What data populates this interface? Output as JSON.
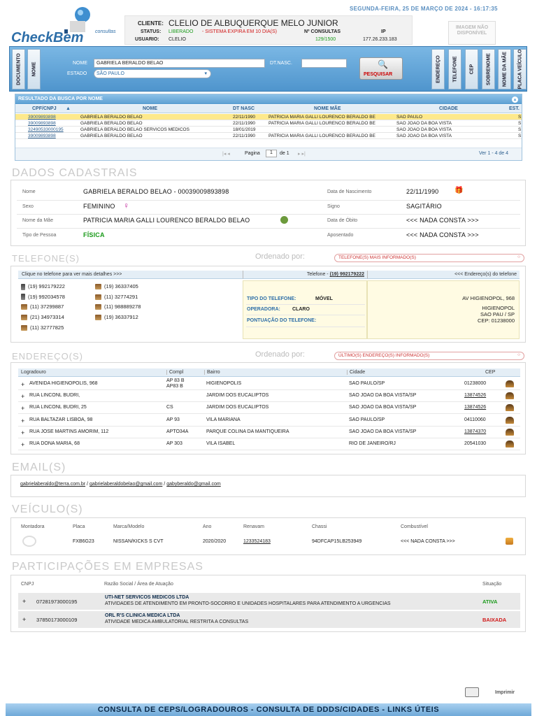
{
  "header": {
    "date": "SEGUNDA-FEIRA, 25 DE MARÇO DE 2024 - 16:17:35",
    "logo_text": "CheckBem",
    "logo_sub": "consultas",
    "cliente_label": "CLIENTE:",
    "cliente_value": "CLELIO DE ALBUQUERQUE MELO JUNIOR",
    "status_label": "STATUS:",
    "status_value": "LIBERADO",
    "status_expire": "- SISTEMA EXPIRA EM 10 DIA(S)",
    "usuario_label": "USUARIO:",
    "usuario_value": "CLELIO",
    "consultas_label": "Nº CONSULTAS",
    "consultas_value": "129/1500",
    "ip_label": "IP",
    "ip_value": "177.26.233.183",
    "image_placeholder": "IMAGEM NÃO DISPONÍVEL"
  },
  "search": {
    "left_tabs": [
      "DOCUMENTO",
      "NOME"
    ],
    "right_tabs": [
      "ENDEREÇO",
      "TELEFONE",
      "CEP",
      "SOBRENOME",
      "NOME DA MÃE",
      "PLACA VEÍCULO"
    ],
    "nome_label": "NOME",
    "nome_value": "GABRIELA BERALDO BELAO",
    "dtnasc_label": "DT.NASC.",
    "dtnasc_value": "",
    "estado_label": "ESTADO",
    "estado_value": "SÃO PAULO",
    "button": "PESQUISAR"
  },
  "results": {
    "title": "RESULTADO DA BUSCA POR NOME",
    "columns": [
      "CPF/CNPJ",
      "NOME",
      "DT NASC",
      "NOME MÃE",
      "CIDADE",
      "EST."
    ],
    "rows": [
      {
        "cpf": "39009893898",
        "nome": "GABRIELA BERALDO BELAO",
        "dt": "22/11/1990",
        "mae": "PATRICIA MARIA GALLI LOURENCO BERALDO BE",
        "cidade": "SAO PAULO",
        "est": "S"
      },
      {
        "cpf": "39009893898",
        "nome": "GABRIELA BERALDO BELAO",
        "dt": "22/11/1990",
        "mae": "PATRICIA MARIA GALLI LOURENCO BERALDO BE",
        "cidade": "SAO JOAO DA BOA VISTA",
        "est": "S"
      },
      {
        "cpf": "32490533000195",
        "nome": "GABRIELA BERALDO BELAO SERVICOS MEDICOS",
        "dt": "18/01/2019",
        "mae": "",
        "cidade": "SAO JOAO DA BOA VISTA",
        "est": "S"
      },
      {
        "cpf": "39009893898",
        "nome": "GABRIELA BERALDO BELAO",
        "dt": "22/11/1990",
        "mae": "PATRICIA MARIA GALLI LOURENCO BERALDO BE",
        "cidade": "SAO JOAO DA BOA VISTA",
        "est": "S"
      }
    ],
    "pagina_label": "Pagina",
    "pagina_value": "1",
    "de_label": "de 1",
    "ver_label": "Ver 1 - 4 de 4"
  },
  "dados": {
    "title": "DADOS CADASTRAIS",
    "nome_label": "Nome",
    "nome_value": "GABRIELA BERALDO BELAO - 00039009893898",
    "nasc_label": "Data de Nascimento",
    "nasc_value": "22/11/1990",
    "sexo_label": "Sexo",
    "sexo_value": "FEMININO",
    "signo_label": "Signo",
    "signo_value": "SAGITÁRIO",
    "mae_label": "Nome da Mãe",
    "mae_value": "PATRICIA MARIA GALLI LOURENCO BERALDO BELAO",
    "obito_label": "Data de Óbito",
    "obito_value": "<<< NADA CONSTA >>>",
    "tipo_label": "Tipo de Pessoa",
    "tipo_value": "FÍSICA",
    "apos_label": "Aposentado",
    "apos_value": "<<< NADA CONSTA >>>"
  },
  "telefones": {
    "title": "TELEFONE(S)",
    "ordenado_label": "Ordenado por:",
    "ordenado_value": "TELEFONE(S) MAIS INFORMADO(S)",
    "col1": "Clique no telefone para ver mais detalhes >>>",
    "col2_prefix": "Telefone - ",
    "col2_value": "(19) 992179222",
    "col3": "<<< Endereço(s) do telefone",
    "list_left": [
      "(19) 992179222",
      "(19) 992034578",
      "(11) 37299887",
      "(21) 34973314",
      "(11) 32777825"
    ],
    "list_right": [
      "(19) 36337405",
      "(11) 32774291",
      "(11) 988889278",
      "(19) 36337912"
    ],
    "tipo_label": "TIPO DO TELEFONE:",
    "tipo_value": "MÓVEL",
    "operadora_label": "OPERADORA:",
    "operadora_value": "CLARO",
    "pontuacao_label": "PONTUAÇÃO DO TELEFONE:",
    "pontuacao_value": "",
    "addr_line1": "AV HIGIENOPOL, 968",
    "addr_line2": "HIGIENOPOL",
    "addr_line3": "SAO PAU / SP",
    "addr_line4": "CEP: 01238000"
  },
  "enderecos": {
    "title": "ENDEREÇO(S)",
    "ordenado_label": "Ordenado por:",
    "ordenado_value": "ÚLTIMO(S) ENDEREÇO(S) INFORMADO(S)",
    "columns": [
      "Logradouro",
      "Compl",
      "Bairro",
      "Cidade",
      "CEP"
    ],
    "rows": [
      {
        "log": "AVENIDA HIGIENOPOLIS, 968",
        "compl": "AP 83 B",
        "compl2": "AP83 B",
        "bairro": "HIGIENOPOLIS",
        "cidade": "SAO PAULO/SP",
        "cep": "01238000",
        "cep_link": false
      },
      {
        "log": "RUA LINCONL BUDRI,",
        "compl": "",
        "compl2": "",
        "bairro": "JARDIM DOS EUCALIPTOS",
        "cidade": "SAO JOAO DA BOA VISTA/SP",
        "cep": "13874526",
        "cep_link": true
      },
      {
        "log": "RUA LINCONL BUDRI, 25",
        "compl": "CS",
        "compl2": "",
        "bairro": "JARDIM DOS EUCALIPTOS",
        "cidade": "SAO JOAO DA BOA VISTA/SP",
        "cep": "13874526",
        "cep_link": true
      },
      {
        "log": "RUA BALTAZAR LISBOA, 98",
        "compl": "AP 93",
        "compl2": "",
        "bairro": "VILA MARIANA",
        "cidade": "SAO PAULO/SP",
        "cep": "04110060",
        "cep_link": false
      },
      {
        "log": "RUA JOSE MARTINS AMORIM, 112",
        "compl": "APTO34A",
        "compl2": "",
        "bairro": "PARQUE COLINA DA MANTIQUEIRA",
        "cidade": "SAO JOAO DA BOA VISTA/SP",
        "cep": "13874370",
        "cep_link": true
      },
      {
        "log": "RUA DONA MARIA, 68",
        "compl": "AP 303",
        "compl2": "",
        "bairro": "VILA ISABEL",
        "cidade": "RIO DE JANEIRO/RJ",
        "cep": "20541030",
        "cep_link": false
      }
    ]
  },
  "emails": {
    "title": "EMAIL(S)",
    "list": [
      "gabrielaberaldo@terra.com.br",
      "gabrielaberaldobelao@gmail.com",
      "gabyberaldo@gmail.com"
    ]
  },
  "veiculos": {
    "title": "VEÍCULO(S)",
    "columns": [
      "Montadora",
      "Placa",
      "Marca/Modelo",
      "Ano",
      "Renavam",
      "Chassi",
      "Combustível"
    ],
    "row": {
      "placa": "FXB6G23",
      "modelo": "NISSAN/KICKS S CVT",
      "ano": "2020/2020",
      "renavam": "1233524183",
      "chassi": "94DFCAP15LB253949",
      "combustivel": "<<< NADA CONSTA >>>"
    }
  },
  "empresas": {
    "title": "PARTICIPAÇÕES EM EMPRESAS",
    "columns": [
      "CNPJ",
      "Razão Social / Área de Atuação",
      "Situação"
    ],
    "rows": [
      {
        "cnpj": "07281973000195",
        "razao": "UTI-NET SERVICOS MEDICOS LTDA",
        "area": "ATIVIDADES DE ATENDIMENTO EM PRONTO-SOCORRO E UNIDADES HOSPITALARES PARA ATENDIMENTO A URGENCIAS",
        "situacao": "ATIVA",
        "color": "#1a9a1a"
      },
      {
        "cnpj": "37850173000109",
        "razao": "ORL R'S CLINICA MEDICA LTDA",
        "area": "ATIVIDADE MEDICA AMBULATORIAL RESTRITA A CONSULTAS",
        "situacao": "BAIXADA",
        "color": "#d01818"
      }
    ]
  },
  "footer": {
    "imprimir": "Imprimir",
    "links": "CONSULTA DE CEPS/LOGRADOUROS - CONSULTA DE DDDS/CIDADES - LINKS ÚTEIS"
  },
  "colors": {
    "accent": "#4f95cd",
    "green": "#1a9a1a",
    "red": "#d01818"
  }
}
